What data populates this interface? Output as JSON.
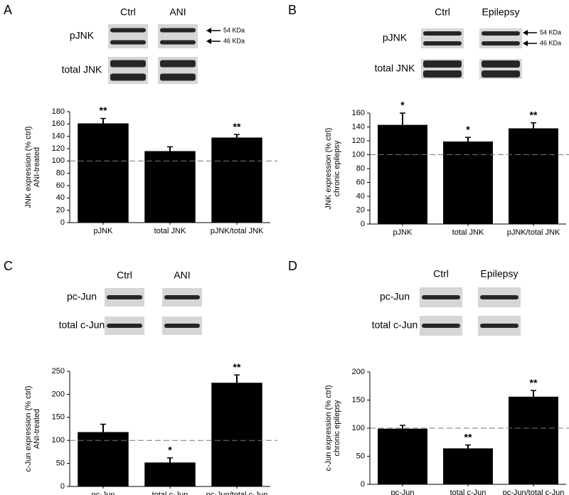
{
  "chart_data": [
    {
      "panel": "A",
      "type": "bar",
      "blot": {
        "columns": [
          "Ctrl",
          "ANI"
        ],
        "rows": [
          "pJNK",
          "total JNK"
        ],
        "markers": [
          "54 KDa",
          "46 KDa"
        ]
      },
      "y_label": [
        "JNK expression (% ctrl)",
        "ANI-treated"
      ],
      "categories": [
        "pJNK",
        "total JNK",
        "pJNK/total JNK"
      ],
      "values": [
        161,
        116,
        138
      ],
      "errors": [
        8,
        7,
        5
      ],
      "annotations": [
        "**",
        null,
        "**"
      ],
      "color": "#000000",
      "ylim": [
        0,
        180
      ],
      "yticks": [
        0,
        20,
        40,
        60,
        80,
        100,
        120,
        140,
        160,
        180
      ],
      "ref_line": 100
    },
    {
      "panel": "B",
      "type": "bar",
      "blot": {
        "columns": [
          "Ctrl",
          "Epilepsy"
        ],
        "rows": [
          "pJNK",
          "total JNK"
        ],
        "markers": [
          "54 KDa",
          "46 KDa"
        ]
      },
      "y_label": [
        "JNK expression (% ctrl)",
        "chronic epilepsy"
      ],
      "categories": [
        "pJNK",
        "total JNK",
        "pJNK/total JNK"
      ],
      "values": [
        143,
        119,
        138
      ],
      "errors": [
        17,
        6,
        8
      ],
      "annotations": [
        "*",
        "*",
        "**"
      ],
      "color": "#000000",
      "ylim": [
        0,
        160
      ],
      "yticks": [
        0,
        20,
        40,
        60,
        80,
        100,
        120,
        140,
        160
      ],
      "ref_line": 100
    },
    {
      "panel": "C",
      "type": "bar",
      "blot": {
        "columns": [
          "Ctrl",
          "ANI"
        ],
        "rows": [
          "pc-Jun",
          "total c-Jun"
        ]
      },
      "y_label": [
        "c-Jun expression (% ctrl)",
        "ANI-treated"
      ],
      "categories": [
        "pc-Jun",
        "total c-Jun",
        "pc-Jun/total c-Jun"
      ],
      "values": [
        118,
        52,
        225
      ],
      "errors": [
        17,
        10,
        17
      ],
      "annotations": [
        null,
        "*",
        "**"
      ],
      "color": "#000000",
      "ylim": [
        0,
        250
      ],
      "yticks": [
        0,
        50,
        100,
        150,
        200,
        250
      ],
      "ref_line": 100
    },
    {
      "panel": "D",
      "type": "bar",
      "blot": {
        "columns": [
          "Ctrl",
          "Epilepsy"
        ],
        "rows": [
          "pc-Jun",
          "total c-Jun"
        ]
      },
      "y_label": [
        "c-Jun expression (% ctrl)",
        "chronic epilepsy"
      ],
      "categories": [
        "pc-Jun",
        "total c-Jun",
        "pc-Jun/total c-Jun"
      ],
      "values": [
        99,
        64,
        156
      ],
      "errors": [
        6,
        6,
        11
      ],
      "annotations": [
        null,
        "**",
        "**"
      ],
      "color": "#000000",
      "ylim": [
        0,
        200
      ],
      "yticks": [
        0,
        50,
        100,
        150,
        200
      ],
      "ref_line": 100
    }
  ]
}
